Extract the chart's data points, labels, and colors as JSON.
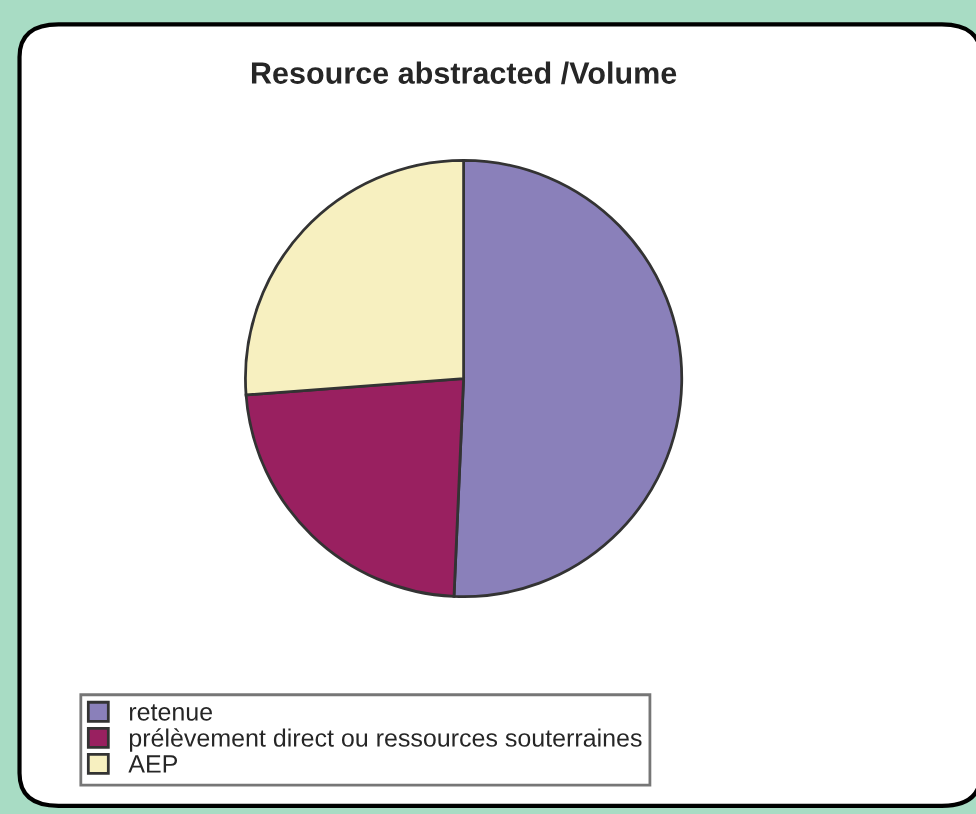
{
  "chart_data": {
    "type": "pie",
    "title": "Resource abstracted /Volume",
    "categories": [
      "retenue",
      "prélèvement direct ou ressources souterraines",
      "AEP"
    ],
    "values": [
      50.7,
      23.1,
      26.2
    ],
    "colors": [
      "#8a80ba",
      "#992060",
      "#f7f0c0"
    ],
    "legend": "bottom"
  }
}
